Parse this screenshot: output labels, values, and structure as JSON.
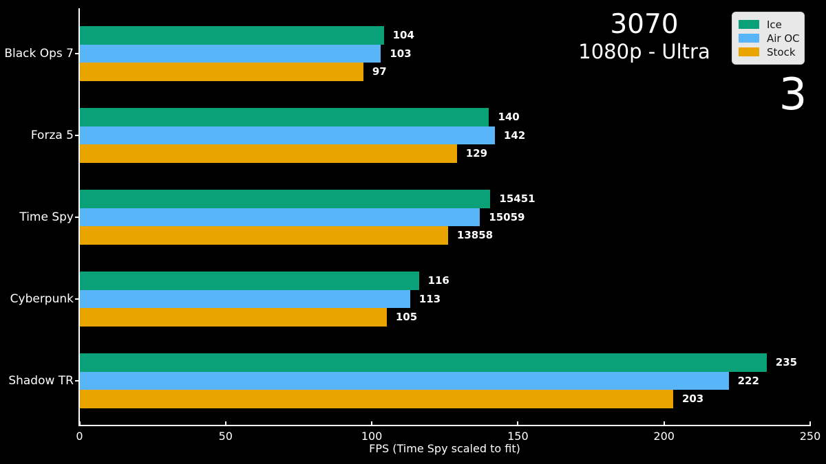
{
  "title": {
    "line1": "3070",
    "line2": "1080p - Ultra"
  },
  "overlay_number": "3",
  "legend": {
    "items": [
      {
        "label": "Ice",
        "color": "#0aa179"
      },
      {
        "label": "Air OC",
        "color": "#57b5f8"
      },
      {
        "label": "Stock",
        "color": "#e9a400"
      }
    ]
  },
  "chart_data": {
    "type": "bar",
    "orientation": "horizontal",
    "categories": [
      "Black Ops 7",
      "Forza 5",
      "Time Spy",
      "Cyberpunk",
      "Shadow TR"
    ],
    "series": [
      {
        "name": "Ice",
        "color": "#0aa179",
        "values": [
          104,
          140,
          15451,
          116,
          235
        ]
      },
      {
        "name": "Air OC",
        "color": "#57b5f8",
        "values": [
          103,
          142,
          15059,
          113,
          222
        ]
      },
      {
        "name": "Stock",
        "color": "#e9a400",
        "values": [
          97,
          129,
          13858,
          105,
          203
        ]
      }
    ],
    "xlabel": "FPS (Time Spy scaled to fit)",
    "xlim": [
      0,
      250
    ],
    "xticks": [
      0,
      50,
      100,
      150,
      200,
      250
    ],
    "time_spy_scale_divisor": 110,
    "legend_position": "upper right",
    "background": "#000000",
    "axis_color": "#ffffff",
    "grid": false
  }
}
